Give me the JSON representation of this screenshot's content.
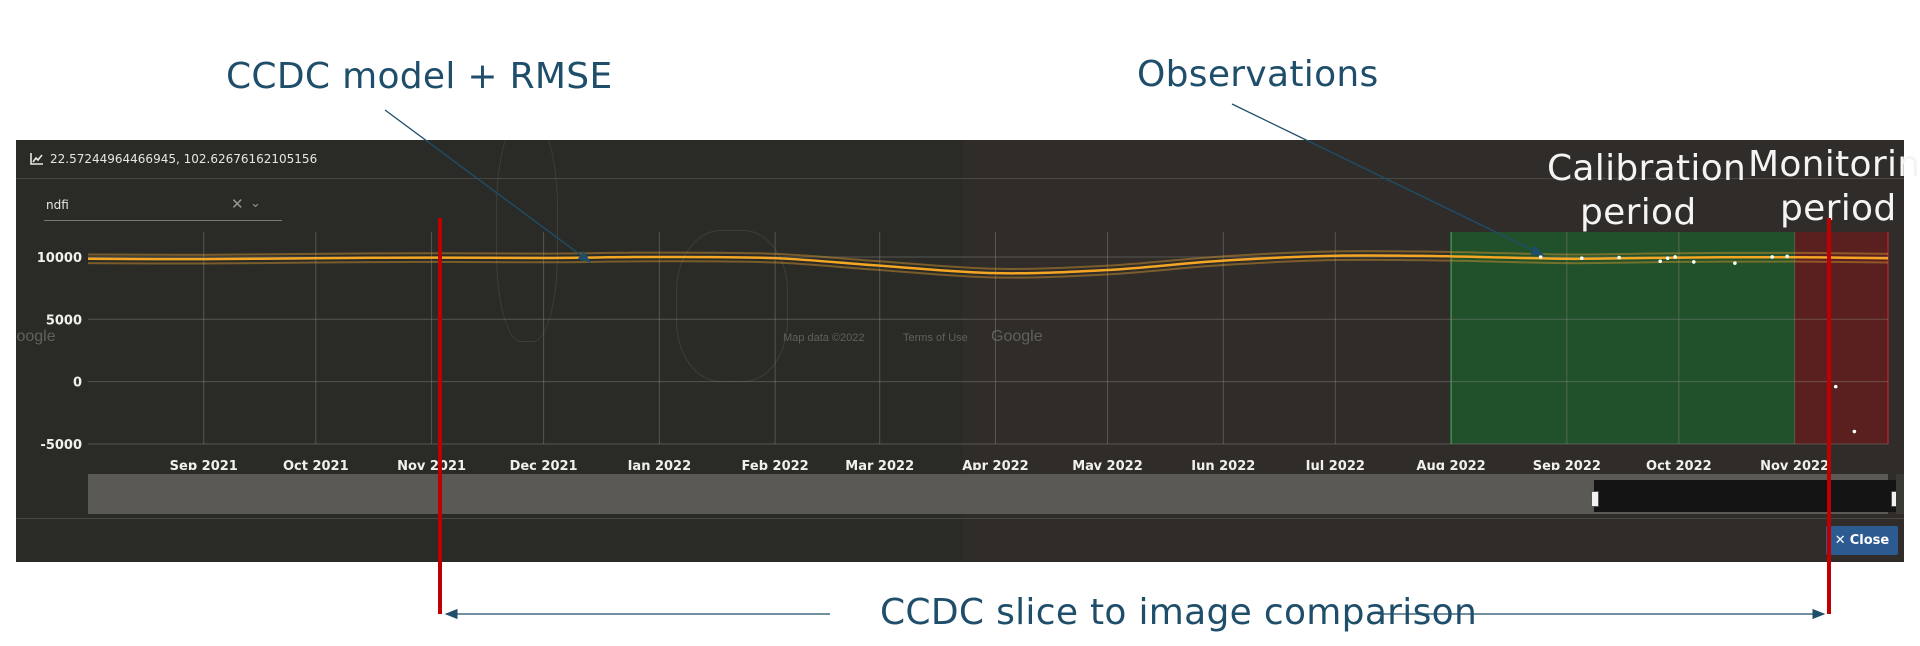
{
  "annotations": {
    "ccdc_model": "CCDC model + RMSE",
    "observations": "Observations",
    "calibration": [
      "Calibration",
      "period"
    ],
    "monitoring": [
      "Monitoring",
      "period"
    ],
    "slice": "CCDC slice to image comparison"
  },
  "panel": {
    "coords": "22.57244964466945, 102.62676162105156",
    "band_select_value": "ndfi",
    "close_label": "Close",
    "close_icon": "✕"
  },
  "map_labels": [
    "Google",
    "Google",
    "Map data ©2022",
    "Terms of Use"
  ],
  "colors": {
    "model_line": "#f5a623",
    "rmse_band": "#d99a2e",
    "calibration_fill": "#1c5e2b",
    "calibration_edge": "#2bbf4a",
    "monitoring_fill": "#6a1c1c",
    "monitoring_edge": "#e0202a",
    "observations": "#ffffff",
    "annotation_text": "#1f4e6b",
    "red_rule": "#c00000"
  },
  "chart_data": {
    "type": "line",
    "x_tick_labels": [
      "Sep 2021",
      "Oct 2021",
      "Nov 2021",
      "Dec 2021",
      "Jan 2022",
      "Feb 2022",
      "Mar 2022",
      "Apr 2022",
      "May 2022",
      "Jun 2022",
      "Jul 2022",
      "Aug 2022",
      "Sep 2022",
      "Oct 2022",
      "Nov 2022"
    ],
    "y_tick_labels": [
      "10000",
      "5000",
      "0",
      "-5000"
    ],
    "ylim": [
      -5000,
      12000
    ],
    "y_ticks": [
      10000,
      5000,
      0,
      -5000
    ],
    "x_ticks": [
      "2021-09-01",
      "2021-10-01",
      "2021-11-01",
      "2021-12-01",
      "2022-01-01",
      "2022-02-01",
      "2022-03-01",
      "2022-04-01",
      "2022-05-01",
      "2022-06-01",
      "2022-07-01",
      "2022-08-01",
      "2022-09-01",
      "2022-10-01",
      "2022-11-01"
    ],
    "xlim": [
      "2021-08-01",
      "2022-11-26"
    ],
    "grid": true,
    "model": {
      "x": [
        "2021-08-01",
        "2021-09-01",
        "2021-10-01",
        "2021-11-01",
        "2021-12-01",
        "2022-01-01",
        "2022-02-01",
        "2022-03-01",
        "2022-04-01",
        "2022-05-01",
        "2022-06-01",
        "2022-07-01",
        "2022-08-01",
        "2022-09-01",
        "2022-10-01",
        "2022-11-01",
        "2022-11-26"
      ],
      "y": [
        9850,
        9820,
        9900,
        9950,
        9920,
        10000,
        9900,
        9300,
        8700,
        8950,
        9700,
        10100,
        10050,
        9850,
        9950,
        9980,
        9900
      ],
      "rmse": 350
    },
    "observations": {
      "x": [
        "2022-08-25",
        "2022-09-05",
        "2022-09-15",
        "2022-09-26",
        "2022-09-28",
        "2022-09-30",
        "2022-10-05",
        "2022-10-16",
        "2022-10-26",
        "2022-10-30",
        "2022-11-12",
        "2022-11-17"
      ],
      "y": [
        10000,
        9900,
        9950,
        9650,
        9900,
        10000,
        9600,
        9500,
        10000,
        10050,
        -400,
        -4000
      ]
    },
    "calibration_period": [
      "2022-08-01",
      "2022-11-01"
    ],
    "monitoring_period": [
      "2022-11-01",
      "2022-11-26"
    ]
  }
}
